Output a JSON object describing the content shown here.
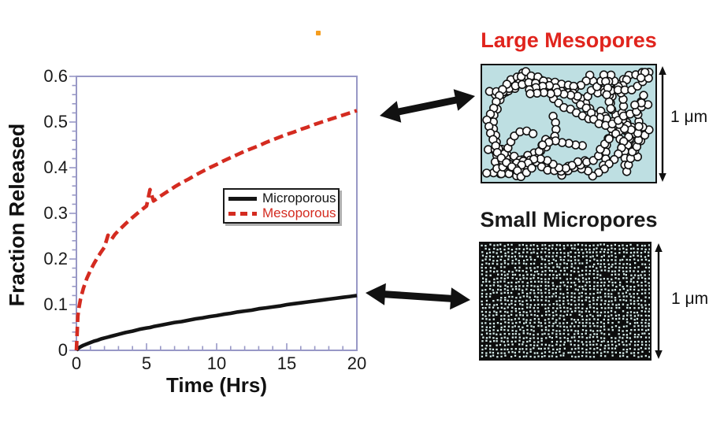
{
  "figure": {
    "background": "#ffffff",
    "artifact_dot_color": "#f59d1e"
  },
  "chart_data": {
    "type": "line",
    "title": "",
    "xlabel": "Time (Hrs)",
    "ylabel": "Fraction Released",
    "xlim": [
      0,
      20
    ],
    "ylim": [
      0,
      0.6
    ],
    "x_ticks": [
      0,
      5,
      10,
      15,
      20
    ],
    "x_tick_labels": [
      "0",
      "5",
      "10",
      "15",
      "20"
    ],
    "y_ticks": [
      0,
      0.1,
      0.2,
      0.3,
      0.4,
      0.5,
      0.6
    ],
    "y_tick_labels": [
      "0",
      "0.1",
      "0.2",
      "0.3",
      "0.4",
      "0.5",
      "0.6"
    ],
    "x_minor_step": 1,
    "y_minor_step": 0.02,
    "grid": false,
    "frame_color": "#9898c6",
    "legend": {
      "position": "center-right",
      "border_color": "#1a1a1a",
      "background": "#ffffff"
    },
    "series": [
      {
        "name": "Microporous",
        "color": "#141414",
        "style": "solid",
        "x": [
          0,
          0.1,
          0.2,
          0.3,
          0.5,
          0.75,
          1,
          1.25,
          1.5,
          1.75,
          2,
          2.25,
          2.5,
          2.75,
          3,
          3.5,
          4,
          4.5,
          5,
          5.25,
          5.5,
          6,
          6.5,
          7,
          7.5,
          8,
          8.5,
          9,
          9.5,
          10,
          10.5,
          11,
          11.5,
          12,
          12.5,
          13,
          13.5,
          14,
          14.5,
          15,
          15.5,
          16,
          16.5,
          17,
          17.5,
          18,
          18.5,
          19,
          19.5,
          20
        ],
        "y": [
          0,
          0.004,
          0.006,
          0.008,
          0.011,
          0.014,
          0.017,
          0.02,
          0.022,
          0.025,
          0.027,
          0.029,
          0.031,
          0.033,
          0.035,
          0.039,
          0.042,
          0.046,
          0.049,
          0.05,
          0.052,
          0.055,
          0.058,
          0.061,
          0.063,
          0.066,
          0.069,
          0.071,
          0.074,
          0.076,
          0.079,
          0.081,
          0.084,
          0.086,
          0.088,
          0.091,
          0.093,
          0.095,
          0.097,
          0.1,
          0.102,
          0.104,
          0.106,
          0.108,
          0.11,
          0.112,
          0.114,
          0.116,
          0.118,
          0.12
        ]
      },
      {
        "name": "Mesoporous",
        "color": "#d42b20",
        "style": "dashed",
        "x": [
          0,
          0.1,
          0.2,
          0.3,
          0.5,
          0.75,
          1,
          1.25,
          1.5,
          1.75,
          2,
          2.25,
          2.5,
          2.75,
          3,
          3.5,
          4,
          4.5,
          5,
          5.25,
          5.5,
          6,
          6.5,
          7,
          7.5,
          8,
          8.5,
          9,
          9.5,
          10,
          10.5,
          11,
          11.5,
          12,
          12.5,
          13,
          13.5,
          14,
          14.5,
          15,
          15.5,
          16,
          16.5,
          17,
          17.5,
          18,
          18.5,
          19,
          19.5,
          20
        ],
        "y": [
          0,
          0.075,
          0.097,
          0.113,
          0.136,
          0.158,
          0.175,
          0.19,
          0.203,
          0.215,
          0.226,
          0.252,
          0.243,
          0.254,
          0.262,
          0.277,
          0.291,
          0.304,
          0.316,
          0.352,
          0.327,
          0.338,
          0.348,
          0.358,
          0.367,
          0.375,
          0.384,
          0.392,
          0.4,
          0.407,
          0.415,
          0.422,
          0.429,
          0.436,
          0.442,
          0.448,
          0.455,
          0.461,
          0.467,
          0.473,
          0.478,
          0.484,
          0.489,
          0.495,
          0.5,
          0.505,
          0.51,
          0.515,
          0.52,
          0.525
        ]
      }
    ]
  },
  "panels": [
    {
      "id": "mesopores",
      "title": "Large Mesopores",
      "title_color": "#e0241d",
      "scale_label": "1 μm",
      "background": "#bedfe2",
      "particle_style": "bead-chain-network"
    },
    {
      "id": "micropores",
      "title": "Small Micropores",
      "title_color": "#1a1a1a",
      "scale_label": "1 μm",
      "background": "#0d0d0d",
      "dot_color": "#d7eeec",
      "particle_style": "dense-dot-matrix"
    }
  ]
}
